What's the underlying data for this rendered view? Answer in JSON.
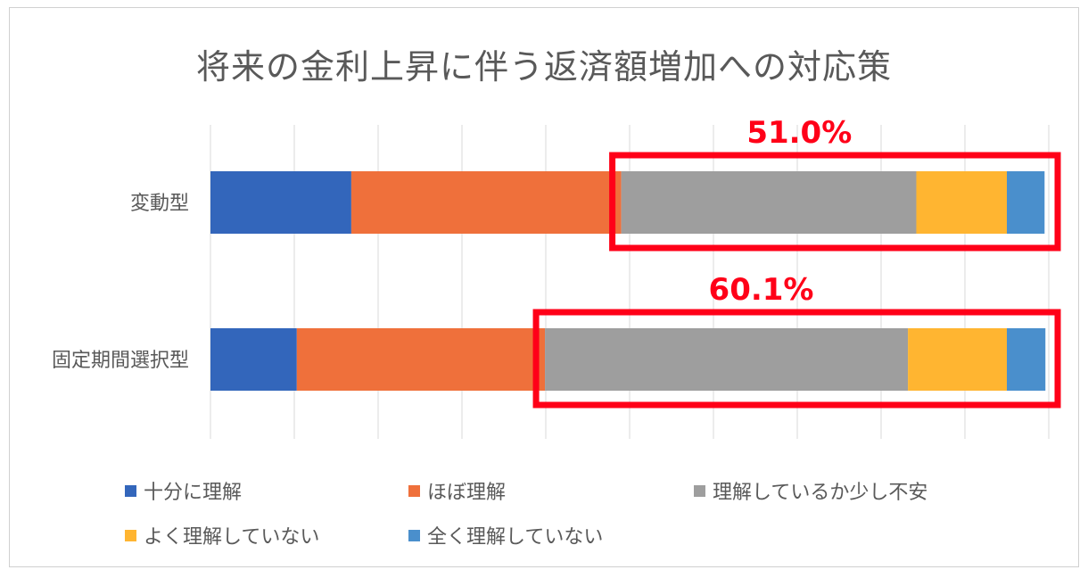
{
  "chart_data": {
    "type": "bar",
    "orientation": "horizontal",
    "stacked": "percent",
    "title": "将来の金利上昇に伴う返済額増加への対応策",
    "categories": [
      "変動型",
      "固定期間選択型"
    ],
    "series": [
      {
        "name": "十分に理解",
        "color": "#3366bb",
        "values": [
          16.8,
          10.3
        ]
      },
      {
        "name": "ほぼ理解",
        "color": "#ef703b",
        "values": [
          32.2,
          29.6
        ]
      },
      {
        "name": "理解しているか少し不安",
        "color": "#9e9e9e",
        "values": [
          35.2,
          43.3
        ]
      },
      {
        "name": "よく理解していない",
        "color": "#ffb531",
        "values": [
          10.8,
          11.8
        ]
      },
      {
        "name": "全く理解していない",
        "color": "#4a8fcc",
        "values": [
          4.5,
          4.6
        ]
      }
    ],
    "xlim": [
      0,
      100
    ],
    "grid": true,
    "legend_position": "bottom",
    "annotations": [
      {
        "category": "変動型",
        "text": "51.0%",
        "color": "#ff0018"
      },
      {
        "category": "固定期間選択型",
        "text": "60.1%",
        "color": "#ff0018"
      }
    ]
  }
}
